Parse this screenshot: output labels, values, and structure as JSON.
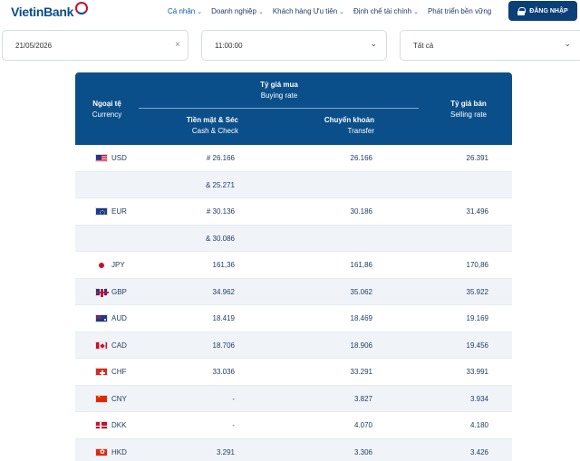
{
  "brand": {
    "logo_text": "VietinBank"
  },
  "nav": {
    "items": [
      {
        "label": "Cá nhân",
        "active": true
      },
      {
        "label": "Doanh nghiệp",
        "active": false
      },
      {
        "label": "Khách hàng Ưu tiên",
        "active": false
      },
      {
        "label": "Định chế tài chính",
        "active": false
      },
      {
        "label": "Phát triển bền vững",
        "active": false
      }
    ],
    "login_label": "ĐĂNG NHẬP"
  },
  "filters": {
    "date": "21/05/2026",
    "time": "11:00:00",
    "type": "Tất cả"
  },
  "table": {
    "headers": {
      "currency_vi": "Ngoại tệ",
      "currency_en": "Currency",
      "buying_vi": "Tỷ giá mua",
      "buying_en": "Buying rate",
      "cash_vi": "Tiền mặt & Séc",
      "cash_en": "Cash & Check",
      "transfer_vi": "Chuyển khoản",
      "transfer_en": "Transfer",
      "selling_vi": "Tỷ giá bán",
      "selling_en": "Selling rate"
    },
    "rows": [
      {
        "flag": "usd",
        "code": "USD",
        "cash": "# 26.166",
        "transfer": "26.166",
        "sell": "26.391"
      },
      {
        "flag": "",
        "code": "",
        "cash": "& 25.271",
        "transfer": "",
        "sell": ""
      },
      {
        "flag": "eur",
        "code": "EUR",
        "cash": "# 30.136",
        "transfer": "30.186",
        "sell": "31.496"
      },
      {
        "flag": "",
        "code": "",
        "cash": "& 30.086",
        "transfer": "",
        "sell": ""
      },
      {
        "flag": "jpy",
        "code": "JPY",
        "cash": "161,36",
        "transfer": "161,86",
        "sell": "170,86"
      },
      {
        "flag": "gbp",
        "code": "GBP",
        "cash": "34.962",
        "transfer": "35.062",
        "sell": "35.922"
      },
      {
        "flag": "aud",
        "code": "AUD",
        "cash": "18.419",
        "transfer": "18.469",
        "sell": "19.169"
      },
      {
        "flag": "cad",
        "code": "CAD",
        "cash": "18.706",
        "transfer": "18.906",
        "sell": "19.456"
      },
      {
        "flag": "chf",
        "code": "CHF",
        "cash": "33.036",
        "transfer": "33.291",
        "sell": "33.991"
      },
      {
        "flag": "cny",
        "code": "CNY",
        "cash": "-",
        "transfer": "3.827",
        "sell": "3.934"
      },
      {
        "flag": "dkk",
        "code": "DKK",
        "cash": "-",
        "transfer": "4.070",
        "sell": "4.180"
      },
      {
        "flag": "hkd",
        "code": "HKD",
        "cash": "3.291",
        "transfer": "3.306",
        "sell": "3.426"
      }
    ]
  }
}
